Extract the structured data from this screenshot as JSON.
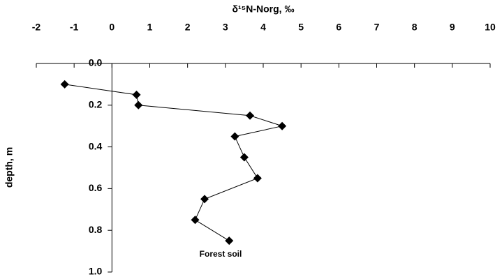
{
  "chart_data": {
    "type": "line",
    "title": "δ¹⁵N-Norg, ‰",
    "y_label": "depth, m",
    "annotation": "Forest soil",
    "x": [
      -1.25,
      0.65,
      0.7,
      3.65,
      4.5,
      3.25,
      3.5,
      3.85,
      2.45,
      2.2,
      3.1
    ],
    "values": [
      0.1,
      0.15,
      0.2,
      0.25,
      0.3,
      0.35,
      0.45,
      0.55,
      0.65,
      0.75,
      0.85
    ],
    "color": "#000000",
    "xlim": [
      -2,
      10
    ],
    "xticks": [
      -2,
      -1,
      0,
      1,
      2,
      3,
      4,
      5,
      6,
      7,
      8,
      9,
      10
    ],
    "ylim": [
      0,
      1
    ],
    "y_inverted": true,
    "yticks": [
      {
        "value": 0,
        "label": "0.0"
      },
      {
        "value": 0.2,
        "label": "0.2"
      },
      {
        "value": 0.4,
        "label": "0.4"
      },
      {
        "value": 0.6,
        "label": "0.6"
      },
      {
        "value": 0.8,
        "label": "0.8"
      },
      {
        "value": 1,
        "label": "1.0"
      }
    ],
    "x_axis_position": "top",
    "grid": false
  }
}
